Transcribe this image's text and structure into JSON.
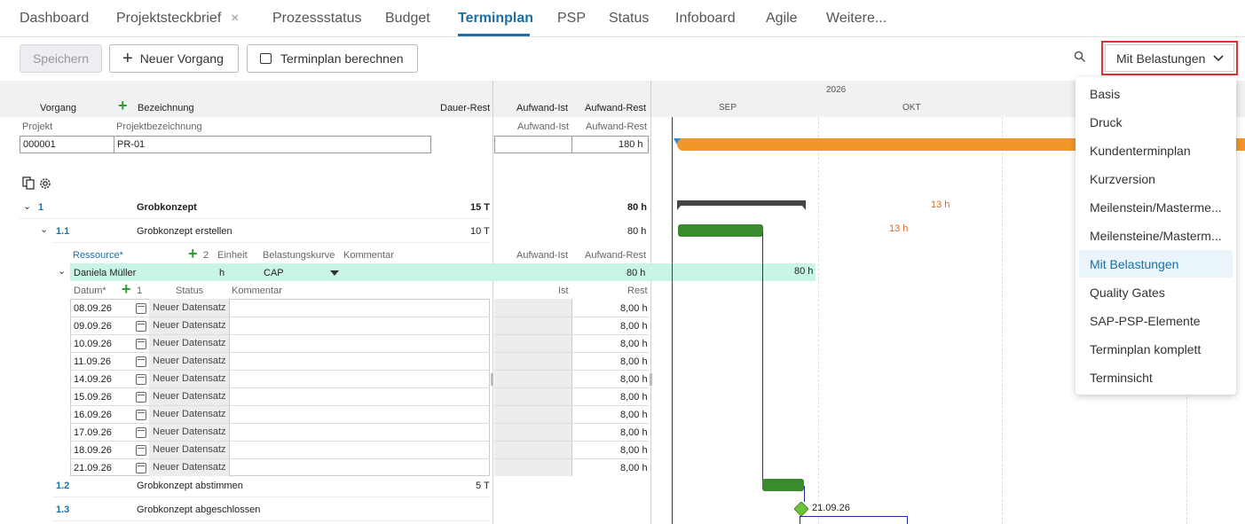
{
  "tabs": [
    {
      "label": "Dashboard"
    },
    {
      "label": "Projektsteckbrief",
      "close": "×"
    },
    {
      "label": "Prozessstatus"
    },
    {
      "label": "Budget"
    },
    {
      "label": "Terminplan"
    },
    {
      "label": "PSP"
    },
    {
      "label": "Status"
    },
    {
      "label": "Infoboard"
    },
    {
      "label": "Agile"
    },
    {
      "label": "Weitere..."
    }
  ],
  "toolbar": {
    "save": "Speichern",
    "new_task": "Neuer Vorgang",
    "calc": "Terminplan berechnen",
    "view_select": "Mit Belastungen"
  },
  "dropdown": {
    "options": [
      "Basis",
      "Druck",
      "Kundenterminplan",
      "Kurzversion",
      "Meilenstein/Masterme...",
      "Meilensteine/Masterm...",
      "Mit Belastungen",
      "Quality Gates",
      "SAP-PSP-Elemente",
      "Terminplan komplett",
      "Terminsicht"
    ],
    "selected": "Mit Belastungen"
  },
  "grid_header": {
    "vorgang": "Vorgang",
    "bezeichnung": "Bezeichnung",
    "dauer_rest": "Dauer-Rest",
    "aufwand_ist": "Aufwand-Ist",
    "aufwand_rest": "Aufwand-Rest"
  },
  "project": {
    "projekt_label": "Projekt",
    "bez_label": "Projektbezeichnung",
    "ist_label": "Aufwand-Ist",
    "rest_label": "Aufwand-Rest",
    "projekt": "000001",
    "bezeichnung": "PR-01",
    "aufwand_rest": "180 h"
  },
  "gantt": {
    "year": "2026",
    "months": [
      "SEP",
      "OKT"
    ],
    "labels": {
      "t1": "13 h",
      "t11": "13 h",
      "load": "80 h",
      "milestone": "21.09.26"
    }
  },
  "tasks": {
    "t1": {
      "id": "1",
      "name": "Grobkonzept",
      "dauer": "15 T",
      "rest": "80 h"
    },
    "t11": {
      "id": "1.1",
      "name": "Grobkonzept erstellen",
      "dauer": "10 T",
      "rest": "80 h"
    },
    "t12": {
      "id": "1.2",
      "name": "Grobkonzept abstimmen",
      "dauer": "5 T"
    },
    "t13": {
      "id": "1.3",
      "name": "Grobkonzept abgeschlossen"
    }
  },
  "resource_header": {
    "ressource": "Ressource*",
    "count": "2",
    "einheit": "Einheit",
    "kurve": "Belastungskurve",
    "kommentar": "Kommentar",
    "ist": "Aufwand-Ist",
    "rest": "Aufwand-Rest"
  },
  "resource": {
    "name": "Daniela Müller",
    "einheit": "h",
    "kurve": "CAP",
    "rest": "80 h"
  },
  "date_header": {
    "datum": "Datum*",
    "count": "1",
    "status": "Status",
    "kommentar": "Kommentar",
    "ist": "Ist",
    "rest": "Rest"
  },
  "date_rows": [
    {
      "date": "08.09.26",
      "status": "Neuer Datensatz",
      "rest": "8,00 h"
    },
    {
      "date": "09.09.26",
      "status": "Neuer Datensatz",
      "rest": "8,00 h"
    },
    {
      "date": "10.09.26",
      "status": "Neuer Datensatz",
      "rest": "8,00 h"
    },
    {
      "date": "11.09.26",
      "status": "Neuer Datensatz",
      "rest": "8,00 h"
    },
    {
      "date": "14.09.26",
      "status": "Neuer Datensatz",
      "rest": "8,00 h"
    },
    {
      "date": "15.09.26",
      "status": "Neuer Datensatz",
      "rest": "8,00 h"
    },
    {
      "date": "16.09.26",
      "status": "Neuer Datensatz",
      "rest": "8,00 h"
    },
    {
      "date": "17.09.26",
      "status": "Neuer Datensatz",
      "rest": "8,00 h"
    },
    {
      "date": "18.09.26",
      "status": "Neuer Datensatz",
      "rest": "8,00 h"
    },
    {
      "date": "21.09.26",
      "status": "Neuer Datensatz",
      "rest": "8,00 h"
    }
  ],
  "colors": {
    "accent": "#1d6fa5",
    "green": "#3a8a2e",
    "orange": "#f0962a",
    "highlight": "#c9f5e7",
    "red_frame": "#e03131"
  }
}
